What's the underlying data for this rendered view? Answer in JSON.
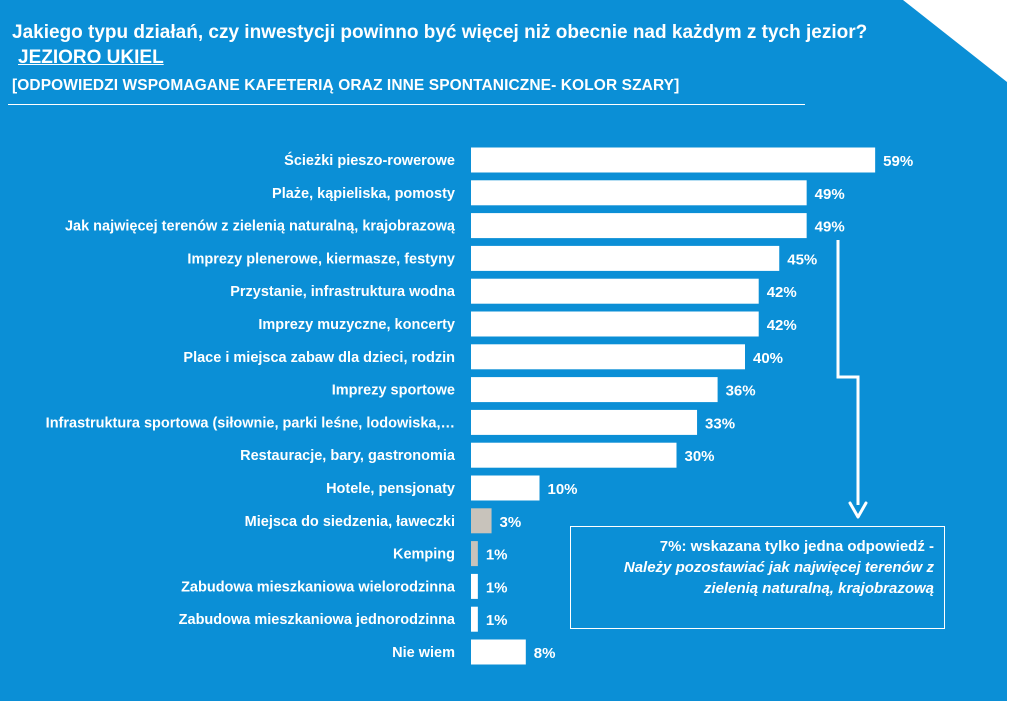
{
  "header": {
    "title": "Jakiego typu działań, czy inwestycji powinno być więcej niż obecnie nad każdym z tych jezior?",
    "lake": "JEZIORO UKIEL",
    "subtitle": "[ODPOWIEDZI WSPOMAGANE KAFETERIĄ ORAZ INNE SPONTANICZNE- KOLOR SZARY]"
  },
  "note": {
    "line1": "7%: wskazana tylko jedna odpowiedź -",
    "line2": "Należy pozostawiać jak najwięcej terenów z zielenią naturalną, krajobrazową"
  },
  "colors": {
    "background": "#0b8fd6",
    "bar_prompted": "#ffffff",
    "bar_spontaneous": "#c8c3bb",
    "text": "#ffffff"
  },
  "chart_data": {
    "type": "bar",
    "orientation": "horizontal",
    "categories": [
      "Ścieżki pieszo-rowerowe",
      "Plaże, kąpieliska, pomosty",
      "Jak najwięcej terenów z zielenią naturalną, krajobrazową",
      "Imprezy plenerowe, kiermasze, festyny",
      "Przystanie, infrastruktura wodna",
      "Imprezy muzyczne, koncerty",
      "Place i miejsca zabaw dla dzieci, rodzin",
      "Imprezy sportowe",
      "Infrastruktura sportowa (siłownie, parki leśne, lodowiska,…",
      "Restauracje, bary, gastronomia",
      "Hotele, pensjonaty",
      "Miejsca do siedzenia, ławeczki",
      "Kemping",
      "Zabudowa mieszkaniowa wielorodzinna",
      "Zabudowa mieszkaniowa jednorodzinna",
      "Nie wiem"
    ],
    "values": [
      59,
      49,
      49,
      45,
      42,
      42,
      40,
      36,
      33,
      30,
      10,
      3,
      1,
      1,
      1,
      8
    ],
    "labels": [
      "59%",
      "49%",
      "49%",
      "45%",
      "42%",
      "42%",
      "40%",
      "36%",
      "33%",
      "30%",
      "10%",
      "3%",
      "1%",
      "1%",
      "1%",
      "8%"
    ],
    "spontaneous": [
      false,
      false,
      false,
      false,
      false,
      false,
      false,
      false,
      false,
      false,
      false,
      true,
      true,
      false,
      false,
      false
    ],
    "xlim": [
      0,
      100
    ],
    "grid": false,
    "legend": "none"
  }
}
